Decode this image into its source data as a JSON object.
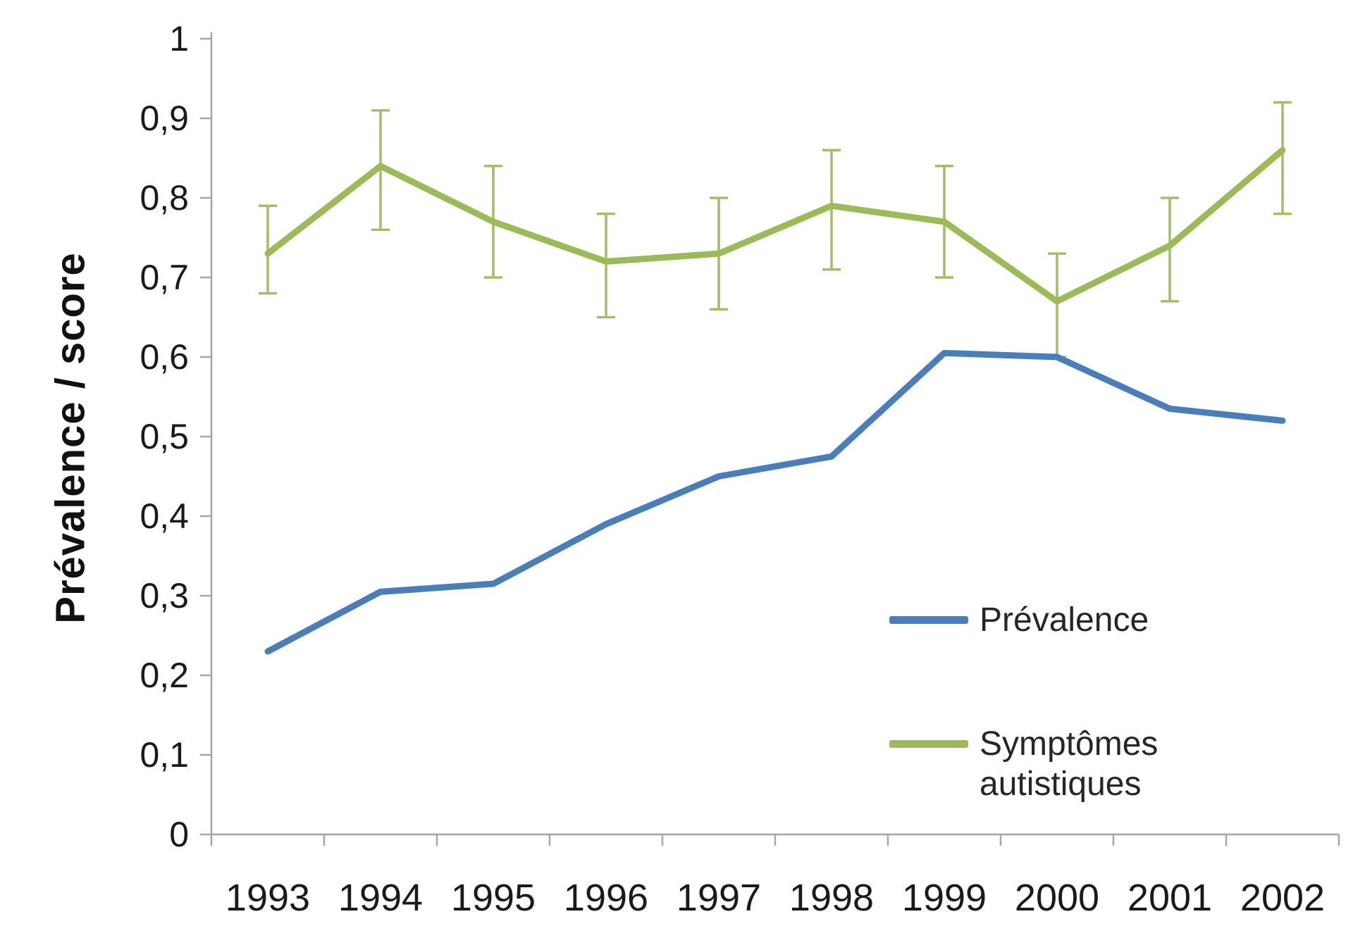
{
  "page": {
    "background": "#ffffff"
  },
  "chart_data": {
    "type": "line",
    "title": "",
    "xlabel": "",
    "ylabel": "Prévalence / score",
    "categories": [
      "1993",
      "1994",
      "1995",
      "1996",
      "1997",
      "1998",
      "1999",
      "2000",
      "2001",
      "2002"
    ],
    "ylim": [
      0,
      1
    ],
    "ytick_step": 0.1,
    "ytick_labels": [
      "0",
      "0,1",
      "0,2",
      "0,3",
      "0,4",
      "0,5",
      "0,6",
      "0,7",
      "0,8",
      "0,9",
      "1"
    ],
    "decimal_separator": ",",
    "grid": false,
    "legend_position": "inside-bottom-right",
    "axis_color": "#a6a6a6",
    "text_color": "#1a1a1a",
    "series": [
      {
        "name": "Prévalence",
        "color": "#4a7ebb",
        "values": [
          0.23,
          0.305,
          0.315,
          0.39,
          0.45,
          0.475,
          0.605,
          0.6,
          0.535,
          0.52
        ]
      },
      {
        "name": "Symptômes autistiques",
        "color": "#9bbb59",
        "error_color": "#a6bd68",
        "values": [
          0.73,
          0.84,
          0.77,
          0.72,
          0.73,
          0.79,
          0.77,
          0.67,
          0.74,
          0.86
        ],
        "error_low": [
          0.68,
          0.76,
          0.7,
          0.65,
          0.66,
          0.71,
          0.7,
          0.6,
          0.67,
          0.78
        ],
        "error_high": [
          0.79,
          0.91,
          0.84,
          0.78,
          0.8,
          0.86,
          0.84,
          0.73,
          0.8,
          0.92
        ]
      }
    ]
  }
}
